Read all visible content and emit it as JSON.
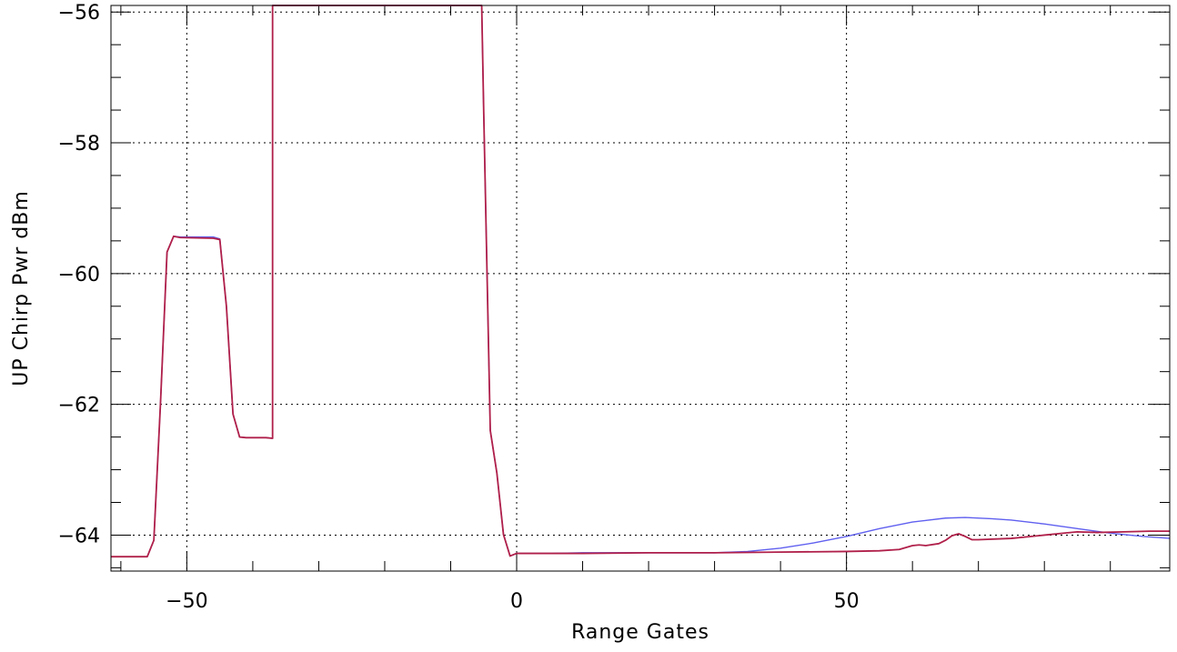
{
  "chart_data": {
    "type": "line",
    "title": "",
    "xlabel": "Range Gates",
    "ylabel": "UP Chirp Pwr dBm",
    "xlim": [
      -61.5,
      99
    ],
    "ylim": [
      -64.55,
      -55.9
    ],
    "grid": true,
    "x_major_ticks": [
      -50,
      0,
      50
    ],
    "x_tick_labels": [
      "−50",
      "0",
      "50"
    ],
    "x_minor_step": 10,
    "y_major_ticks": [
      -64,
      -62,
      -60,
      -58,
      -56
    ],
    "y_tick_labels": [
      "−64",
      "−62",
      "−60",
      "−58",
      "−56"
    ],
    "y_minor_step": 0.5,
    "series": [
      {
        "color": "#6060f0",
        "points": [
          [
            -61.5,
            -64.33
          ],
          [
            -56,
            -64.33
          ],
          [
            -55,
            -64.08
          ],
          [
            -54,
            -62
          ],
          [
            -53,
            -59.67
          ],
          [
            -52,
            -59.43
          ],
          [
            -51,
            -59.44
          ],
          [
            -46,
            -59.44
          ],
          [
            -45,
            -59.47
          ],
          [
            -44,
            -60.5
          ],
          [
            -43,
            -62.15
          ],
          [
            -42,
            -62.5
          ],
          [
            -41,
            -62.51
          ],
          [
            -38,
            -62.51
          ],
          [
            -37,
            -62.52
          ],
          [
            -37,
            -55.9
          ],
          [
            -5.3,
            -55.9
          ],
          [
            -5,
            -57.5
          ],
          [
            -4,
            -62.4
          ],
          [
            -3,
            -63.05
          ],
          [
            -2,
            -63.99
          ],
          [
            -1,
            -64.32
          ],
          [
            0,
            -64.28
          ],
          [
            5,
            -64.28
          ],
          [
            10,
            -64.27
          ],
          [
            20,
            -64.27
          ],
          [
            30,
            -64.27
          ],
          [
            35,
            -64.25
          ],
          [
            40,
            -64.2
          ],
          [
            45,
            -64.12
          ],
          [
            50,
            -64.02
          ],
          [
            55,
            -63.9
          ],
          [
            60,
            -63.8
          ],
          [
            65,
            -63.74
          ],
          [
            68,
            -63.73
          ],
          [
            72,
            -63.75
          ],
          [
            75,
            -63.77
          ],
          [
            80,
            -63.83
          ],
          [
            85,
            -63.9
          ],
          [
            90,
            -63.97
          ],
          [
            95,
            -64.02
          ],
          [
            99,
            -64.05
          ]
        ]
      },
      {
        "color": "#b0204a",
        "points": [
          [
            -61.5,
            -64.33
          ],
          [
            -56,
            -64.33
          ],
          [
            -55,
            -64.08
          ],
          [
            -54,
            -62
          ],
          [
            -53,
            -59.67
          ],
          [
            -52,
            -59.43
          ],
          [
            -51,
            -59.45
          ],
          [
            -46,
            -59.46
          ],
          [
            -45,
            -59.48
          ],
          [
            -44,
            -60.5
          ],
          [
            -43,
            -62.15
          ],
          [
            -42,
            -62.5
          ],
          [
            -41,
            -62.51
          ],
          [
            -38,
            -62.51
          ],
          [
            -37,
            -62.52
          ],
          [
            -37,
            -55.9
          ],
          [
            -5.3,
            -55.9
          ],
          [
            -5,
            -57.5
          ],
          [
            -4,
            -62.4
          ],
          [
            -3,
            -63.05
          ],
          [
            -2,
            -63.99
          ],
          [
            -1,
            -64.32
          ],
          [
            0,
            -64.28
          ],
          [
            5,
            -64.28
          ],
          [
            10,
            -64.28
          ],
          [
            20,
            -64.27
          ],
          [
            30,
            -64.27
          ],
          [
            40,
            -64.26
          ],
          [
            50,
            -64.25
          ],
          [
            55,
            -64.24
          ],
          [
            58,
            -64.22
          ],
          [
            60,
            -64.16
          ],
          [
            61,
            -64.15
          ],
          [
            62,
            -64.16
          ],
          [
            64,
            -64.13
          ],
          [
            65,
            -64.08
          ],
          [
            66,
            -64.01
          ],
          [
            67,
            -63.98
          ],
          [
            68,
            -64.02
          ],
          [
            69,
            -64.07
          ],
          [
            70,
            -64.07
          ],
          [
            75,
            -64.05
          ],
          [
            80,
            -64.0
          ],
          [
            83,
            -63.97
          ],
          [
            85,
            -63.95
          ],
          [
            88,
            -63.96
          ],
          [
            92,
            -63.95
          ],
          [
            96,
            -63.94
          ],
          [
            99,
            -63.94
          ]
        ]
      }
    ]
  }
}
